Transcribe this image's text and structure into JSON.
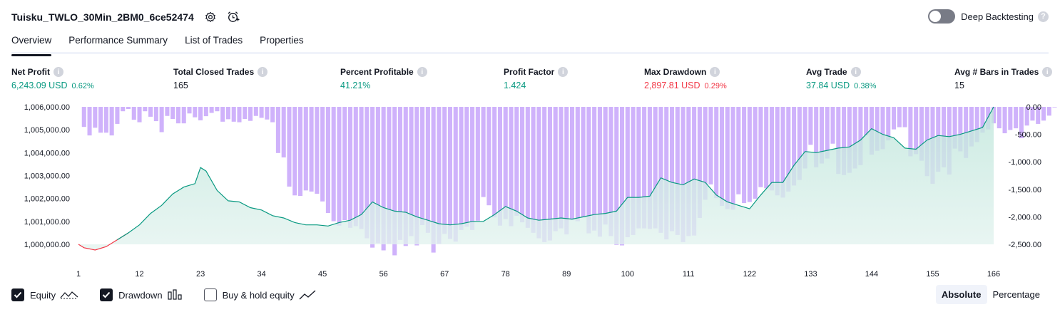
{
  "header": {
    "title": "Tuisku_TWLO_30Min_2BM0_6ce52474",
    "deep_backtesting_label": "Deep Backtesting",
    "help_glyph": "?"
  },
  "tabs": [
    {
      "label": "Overview",
      "active": true
    },
    {
      "label": "Performance Summary",
      "active": false
    },
    {
      "label": "List of Trades",
      "active": false
    },
    {
      "label": "Properties",
      "active": false
    }
  ],
  "metrics": [
    {
      "label": "Net Profit",
      "value": "6,243.09 USD",
      "pct": "0.62%",
      "tone": "pos"
    },
    {
      "label": "Total Closed Trades",
      "value": "165",
      "pct": "",
      "tone": "neutral"
    },
    {
      "label": "Percent Profitable",
      "value": "41.21%",
      "pct": "",
      "tone": "pos"
    },
    {
      "label": "Profit Factor",
      "value": "1.424",
      "pct": "",
      "tone": "pos"
    },
    {
      "label": "Max Drawdown",
      "value": "2,897.81 USD",
      "pct": "0.29%",
      "tone": "neg"
    },
    {
      "label": "Avg Trade",
      "value": "37.84 USD",
      "pct": "0.38%",
      "tone": "pos"
    },
    {
      "label": "Avg # Bars in Trades",
      "value": "15",
      "pct": "",
      "tone": "neutral"
    }
  ],
  "info_glyph": "i",
  "chart_data": {
    "type": "line",
    "x_ticks": [
      1,
      12,
      23,
      34,
      45,
      56,
      67,
      78,
      89,
      100,
      111,
      122,
      133,
      144,
      155,
      166
    ],
    "y_left_ticks": [
      "1,006,000.00",
      "1,005,000.00",
      "1,004,000.00",
      "1,003,000.00",
      "1,002,000.00",
      "1,001,000.00",
      "1,000,000.00"
    ],
    "y_left_range": [
      1000000,
      1006000
    ],
    "y_right_ticks": [
      "0.00",
      "-500.00",
      "-1,000.00",
      "-1,500.00",
      "-2,000.00",
      "-2,500.00"
    ],
    "y_right_range": [
      -2500,
      0
    ],
    "series": [
      {
        "kind": "equity",
        "x": [
          1,
          2,
          4,
          6,
          8,
          10,
          12,
          14,
          16,
          18,
          20,
          22,
          23,
          24,
          26,
          28,
          30,
          32,
          34,
          36,
          38,
          40,
          42,
          44,
          46,
          48,
          50,
          52,
          54,
          56,
          58,
          60,
          62,
          64,
          66,
          68,
          70,
          72,
          74,
          76,
          78,
          80,
          82,
          84,
          86,
          88,
          90,
          92,
          94,
          96,
          98,
          100,
          102,
          104,
          106,
          108,
          110,
          112,
          114,
          116,
          118,
          120,
          122,
          124,
          126,
          128,
          130,
          132,
          134,
          136,
          138,
          140,
          142,
          144,
          146,
          148,
          150,
          152,
          154,
          156,
          158,
          160,
          162,
          164,
          166
        ],
        "y": [
          1000000,
          999850,
          999750,
          999900,
          1000200,
          1000500,
          1000850,
          1001350,
          1001700,
          1002200,
          1002500,
          1002650,
          1003350,
          1003200,
          1002350,
          1001900,
          1001850,
          1001600,
          1001500,
          1001250,
          1001150,
          1000950,
          1000850,
          1000850,
          1000800,
          1000950,
          1001050,
          1001300,
          1001850,
          1001600,
          1001450,
          1001400,
          1001200,
          1001050,
          1000900,
          1000850,
          1000900,
          1001000,
          1001000,
          1001300,
          1001650,
          1001450,
          1001150,
          1001050,
          1001100,
          1001150,
          1001100,
          1001200,
          1001300,
          1001350,
          1001450,
          1002050,
          1002050,
          1002100,
          1002900,
          1002700,
          1002600,
          1002850,
          1002700,
          1002150,
          1001850,
          1001700,
          1001550,
          1002150,
          1002700,
          1002700,
          1003450,
          1004050,
          1004000,
          1004100,
          1004200,
          1004250,
          1004550,
          1005050,
          1004800,
          1004650,
          1004200,
          1004150,
          1004550,
          1004750,
          1004700,
          1004800,
          1004950,
          1005100,
          1006000
        ]
      },
      {
        "kind": "drawdown",
        "values": [
          0,
          -365,
          -520,
          -380,
          -470,
          -470,
          -520,
          -310,
          -80,
          -40,
          -235,
          -280,
          -80,
          -180,
          -260,
          -460,
          -165,
          -220,
          -300,
          -300,
          -120,
          -190,
          -245,
          -170,
          -110,
          -80,
          -270,
          -225,
          -270,
          -280,
          -220,
          -255,
          -165,
          -200,
          -230,
          -280,
          -840,
          -920,
          -1450,
          -1610,
          -1620,
          -1520,
          -1540,
          -1580,
          -1720,
          -1930,
          -2080,
          -2160,
          -2060,
          -2200,
          -2170,
          -2220,
          -2390,
          -2560,
          -2480,
          -2610,
          -2490,
          -2700,
          -2420,
          -2530,
          -2350,
          -2520,
          -2150,
          -2290,
          -2650,
          -2490,
          -2310,
          -2400,
          -2450,
          -2240,
          -2180,
          -2240,
          -2070,
          -1640,
          -1790,
          -2010,
          -2160,
          -2040,
          -2170,
          -1980,
          -2100,
          -2200,
          -2290,
          -2390,
          -2460,
          -2430,
          -2260,
          -2210,
          -2320,
          -2060,
          -2080,
          -2010,
          -2300,
          -2250,
          -2360,
          -2140,
          -2350,
          -2510,
          -2520,
          -2370,
          -2330,
          -2210,
          -2210,
          -2220,
          -2210,
          -2290,
          -2410,
          -2260,
          -2330,
          -2460,
          -2350,
          -2340,
          -2020,
          -1690,
          -1410,
          -1660,
          -1800,
          -1860,
          -1870,
          -1590,
          -1750,
          -1730,
          -1670,
          -1460,
          -1480,
          -1520,
          -1610,
          -1650,
          -1540,
          -1430,
          -1330,
          -1120,
          -690,
          -1100,
          -1030,
          -940,
          -670,
          -1220,
          -1240,
          -1200,
          -1120,
          -1060,
          -520,
          -870,
          -800,
          -770,
          -610,
          -410,
          -370,
          -370,
          -900,
          -860,
          -980,
          -1260,
          -1400,
          -1180,
          -1100,
          -1230,
          -760,
          -810,
          -930,
          -720,
          -640,
          -470,
          -410,
          -300,
          -390,
          -480,
          -420,
          -390,
          -570,
          -340,
          -250,
          -310,
          -250,
          -160,
          -10
        ]
      }
    ]
  },
  "legend": [
    {
      "label": "Equity",
      "checked": true,
      "icon": "equity-line-icon"
    },
    {
      "label": "Drawdown",
      "checked": true,
      "icon": "drawdown-bars-icon"
    },
    {
      "label": "Buy & hold equity",
      "checked": false,
      "icon": "buy-hold-line-icon"
    }
  ],
  "view_modes": [
    {
      "label": "Absolute",
      "active": true
    },
    {
      "label": "Percentage",
      "active": false
    }
  ],
  "colors": {
    "positive": "#089981",
    "negative": "#f23645",
    "drawdown": "#cfb2fb",
    "drawdown_overlap": "#b9aff0",
    "equity_line": "#089981",
    "equity_fill": "#d5efe9",
    "accent": "#131722"
  }
}
